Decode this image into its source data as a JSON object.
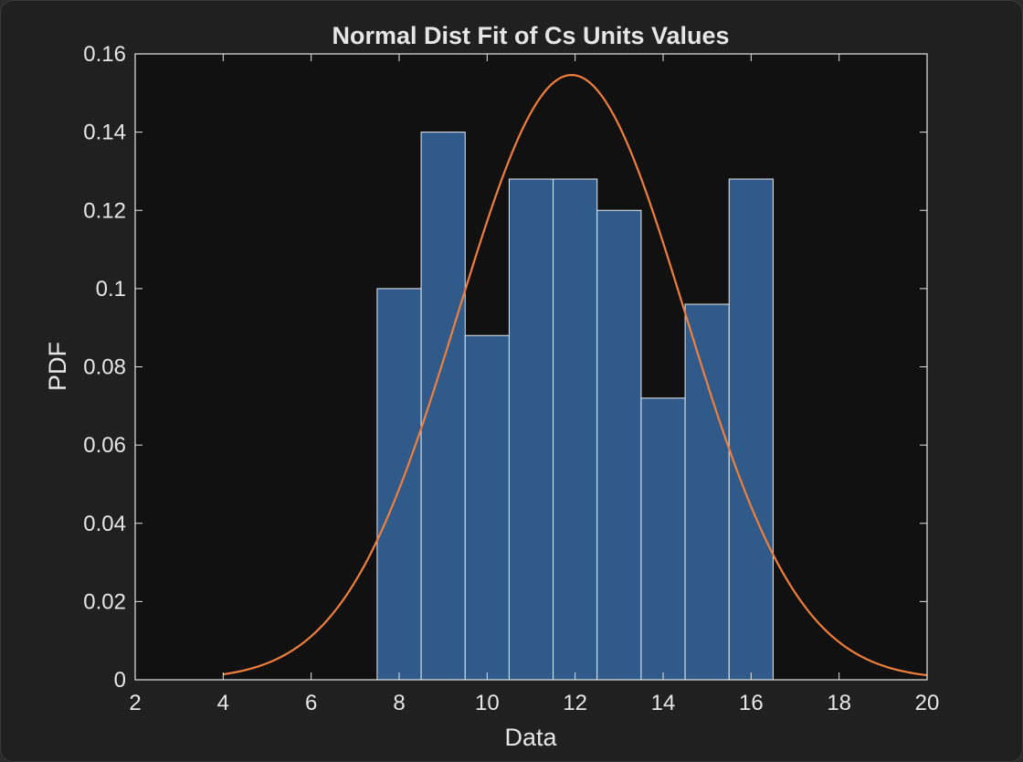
{
  "chart_data": {
    "type": "bar",
    "title": "Normal Dist Fit of Cs Units Values",
    "xlabel": "Data",
    "ylabel": "PDF",
    "xlim": [
      2,
      20
    ],
    "ylim": [
      0,
      0.16
    ],
    "xticks": [
      2,
      4,
      6,
      8,
      10,
      12,
      14,
      16,
      18,
      20
    ],
    "yticks": [
      0,
      0.02,
      0.04,
      0.06,
      0.08,
      0.1,
      0.12,
      0.14,
      0.16
    ],
    "ytick_labels": [
      "0",
      "0.02",
      "0.04",
      "0.06",
      "0.08",
      "0.1",
      "0.12",
      "0.14",
      "0.16"
    ],
    "grid": false,
    "histogram": {
      "bin_edges": [
        7.5,
        8.5,
        9.5,
        10.5,
        11.5,
        12.5,
        13.5,
        14.5,
        15.5,
        16.5
      ],
      "values": [
        0.1,
        0.14,
        0.088,
        0.128,
        0.128,
        0.12,
        0.072,
        0.096,
        0.128
      ],
      "color": "#2f5a8a",
      "edge_color": "#e8ecf2"
    },
    "fit_curve": {
      "type": "normal_pdf",
      "mean": 11.92,
      "std": 2.58,
      "x_range": [
        4,
        20
      ],
      "color": "#f07f3c"
    },
    "colors": {
      "axes_background": "#111111",
      "figure_background": "#202020",
      "axis_color": "#e6e6e6"
    }
  }
}
